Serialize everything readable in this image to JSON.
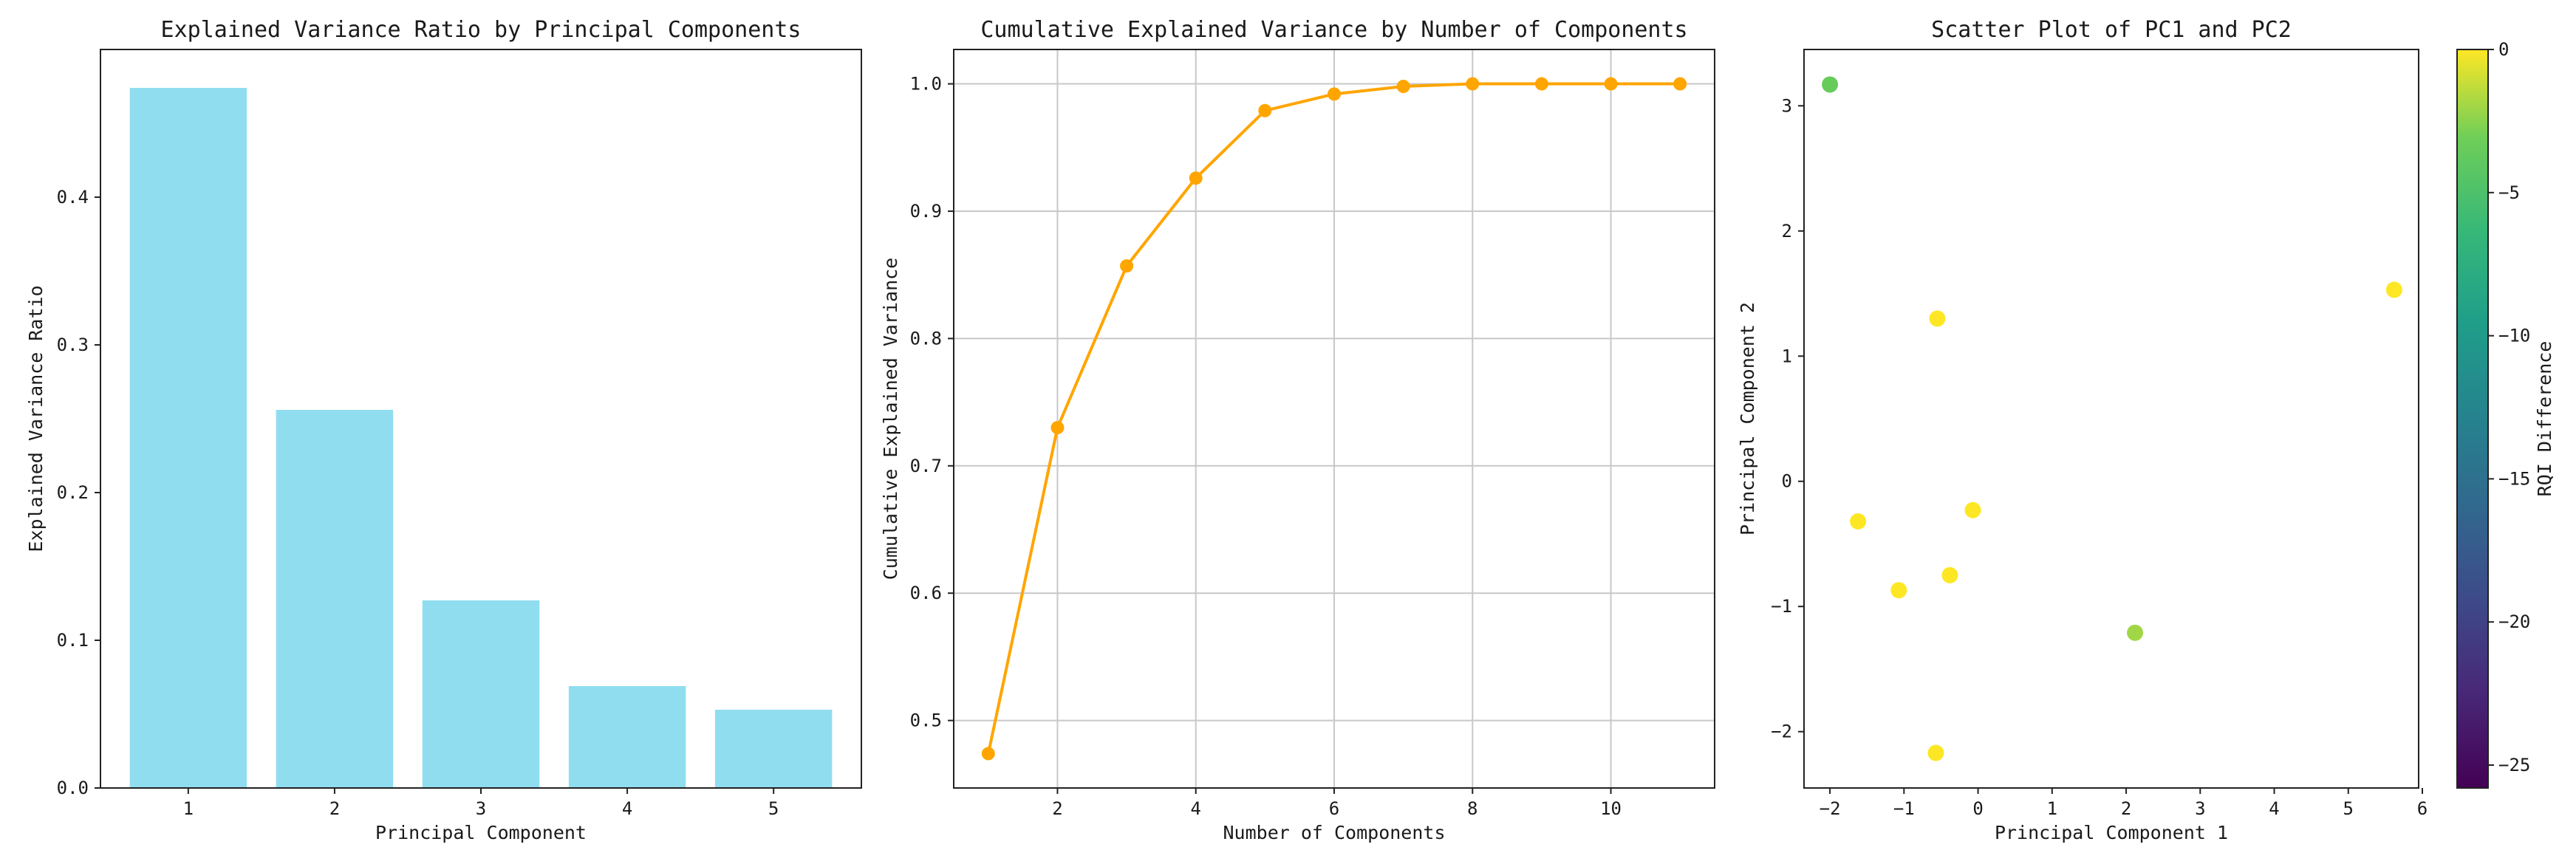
{
  "chart_data": [
    {
      "type": "bar",
      "title": "Explained Variance Ratio by Principal Components",
      "xlabel": "Principal Component",
      "ylabel": "Explained Variance Ratio",
      "categories": [
        "1",
        "2",
        "3",
        "4",
        "5"
      ],
      "values": [
        0.474,
        0.256,
        0.127,
        0.069,
        0.053
      ],
      "ylim": [
        0,
        0.5
      ],
      "yticks": [
        0.0,
        0.1,
        0.2,
        0.3,
        0.4
      ],
      "ytick_labels": [
        "0.0",
        "0.1",
        "0.2",
        "0.3",
        "0.4"
      ],
      "grid": false,
      "color": "#90ddf0"
    },
    {
      "type": "line",
      "title": "Cumulative Explained Variance by Number of Components",
      "xlabel": "Number of Components",
      "ylabel": "Cumulative Explained Variance",
      "x": [
        1,
        2,
        3,
        4,
        5,
        6,
        7,
        8,
        9,
        10,
        11
      ],
      "y": [
        0.474,
        0.73,
        0.857,
        0.926,
        0.979,
        0.992,
        0.998,
        1.0,
        1.0,
        1.0,
        1.0
      ],
      "xlim": [
        0.5,
        11.5
      ],
      "ylim": [
        0.447,
        1.027
      ],
      "xticks": [
        2,
        4,
        6,
        8,
        10
      ],
      "xtick_labels": [
        "2",
        "4",
        "6",
        "8",
        "10"
      ],
      "yticks": [
        0.5,
        0.6,
        0.7,
        0.8,
        0.9,
        1.0
      ],
      "ytick_labels": [
        "0.5",
        "0.6",
        "0.7",
        "0.8",
        "0.9",
        "1.0"
      ],
      "grid": true,
      "marker": "circle",
      "color": "#ffa500"
    },
    {
      "type": "scatter",
      "title": "Scatter Plot of PC1 and PC2",
      "xlabel": "Principal Component 1",
      "ylabel": "Principal Component 2",
      "points": [
        {
          "x": -2.0,
          "y": 3.17,
          "c": -3.5
        },
        {
          "x": -0.55,
          "y": 1.3,
          "c": 0
        },
        {
          "x": 5.62,
          "y": 1.53,
          "c": 0
        },
        {
          "x": -1.62,
          "y": -0.32,
          "c": 0
        },
        {
          "x": -0.07,
          "y": -0.23,
          "c": 0
        },
        {
          "x": -1.07,
          "y": -0.87,
          "c": 0
        },
        {
          "x": -0.38,
          "y": -0.75,
          "c": 0
        },
        {
          "x": 2.12,
          "y": -1.21,
          "c": -2
        },
        {
          "x": -0.57,
          "y": -2.17,
          "c": 0
        }
      ],
      "xlim": [
        -2.35,
        5.95
      ],
      "ylim": [
        -2.45,
        3.45
      ],
      "xticks": [
        -2,
        -1,
        0,
        1,
        2,
        3,
        4,
        5,
        6
      ],
      "xtick_labels": [
        "−2",
        "−1",
        "0",
        "1",
        "2",
        "3",
        "4",
        "5",
        "6"
      ],
      "yticks": [
        -2,
        -1,
        0,
        1,
        2,
        3
      ],
      "ytick_labels": [
        "−2",
        "−1",
        "0",
        "1",
        "2",
        "3"
      ],
      "grid": false,
      "colormap": "viridis",
      "colorbar": {
        "label": "RQI Difference",
        "range": [
          -25.8,
          0
        ],
        "ticks": [
          0,
          -5,
          -10,
          -15,
          -20,
          -25
        ],
        "tick_labels": [
          "0",
          "−5",
          "−10",
          "−15",
          "−20",
          "−25"
        ]
      }
    }
  ]
}
